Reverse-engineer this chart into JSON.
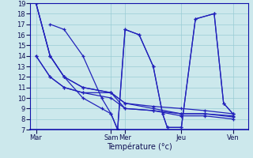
{
  "xlabel": "Température (°c)",
  "background_color": "#cce8ec",
  "line_color": "#2222bb",
  "grid_color": "#99ccd4",
  "ylim": [
    7,
    19
  ],
  "yticks": [
    7,
    8,
    9,
    10,
    11,
    12,
    13,
    14,
    15,
    16,
    17,
    18,
    19
  ],
  "day_positions": [
    0,
    4,
    4.75,
    7.75,
    10.5
  ],
  "day_labels": [
    "Mar",
    "Sam",
    "Mer",
    "Jeu",
    "Ven"
  ],
  "xlim": [
    -0.3,
    11.3
  ],
  "lines": [
    {
      "x": [
        0,
        0.75,
        1.5,
        2.5,
        4,
        4.75,
        6.25,
        7.75,
        9.0,
        10.5
      ],
      "y": [
        19,
        14,
        12,
        11,
        10.5,
        9.5,
        9.0,
        8.5,
        8.5,
        8.2
      ]
    },
    {
      "x": [
        0,
        0.75,
        1.5,
        2.5,
        4,
        4.75,
        6.25,
        7.75,
        9.0,
        10.5
      ],
      "y": [
        19,
        14,
        12,
        11,
        10.5,
        9.0,
        8.8,
        8.3,
        8.3,
        8.0
      ]
    },
    {
      "x": [
        0,
        0.75,
        1.5,
        2.5,
        4,
        4.75,
        6.25,
        7.75,
        9.0,
        10.5
      ],
      "y": [
        14,
        12,
        11,
        10.5,
        10.5,
        9.5,
        9.2,
        9.0,
        8.8,
        8.5
      ]
    },
    {
      "x": [
        0,
        0.75,
        1.5,
        2.5,
        4,
        4.75,
        6.25,
        7.75,
        9.0,
        10.5
      ],
      "y": [
        14,
        12,
        11,
        10.5,
        10.0,
        9.0,
        8.8,
        8.5,
        8.5,
        8.3
      ]
    },
    {
      "x": [
        0,
        0.75,
        1.5,
        2.5,
        3.5,
        4,
        4.35,
        4.75,
        5.5,
        6.25,
        6.75,
        7.0,
        7.75,
        8.5,
        9.5,
        10.0,
        10.5
      ],
      "y": [
        19,
        14,
        12,
        10,
        9,
        8.5,
        7,
        16.5,
        16,
        13,
        8.5,
        7.2,
        7.2,
        17.5,
        18,
        9.5,
        8.5
      ]
    },
    {
      "x": [
        0.75,
        1.5,
        2.5,
        3.5,
        4.0,
        4.35,
        4.75,
        5.5,
        6.25,
        6.75,
        7.0,
        7.75,
        8.5,
        9.5,
        10.0,
        10.5
      ],
      "y": [
        17,
        16.5,
        14,
        10,
        8.5,
        7,
        16.5,
        16,
        13,
        8.5,
        7.2,
        7.2,
        17.5,
        18,
        9.5,
        8.5
      ]
    }
  ]
}
